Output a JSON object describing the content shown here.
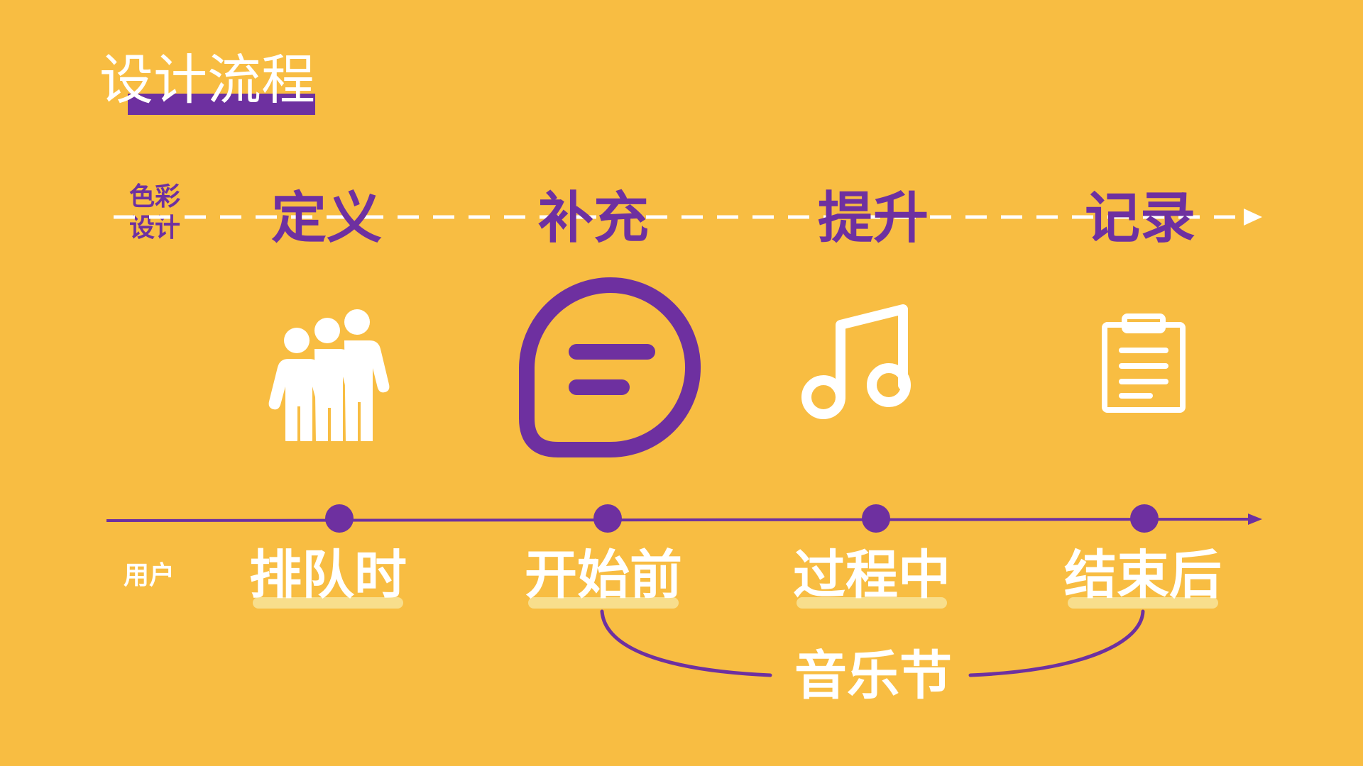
{
  "title": "设计流程",
  "labels": {
    "color_design": "色彩\n设计",
    "user": "用户"
  },
  "stages": [
    "定义",
    "补充",
    "提升",
    "记录"
  ],
  "phases": [
    "排队时",
    "开始前",
    "过程中",
    "结束后"
  ],
  "bracket_label": "音乐节",
  "icons": [
    "people-group-icon",
    "chat-bubble-icon",
    "music-note-icon",
    "clipboard-icon"
  ],
  "colors": {
    "background": "#F8BD42",
    "accent": "#6E30A0",
    "text_light": "#FFFFFF",
    "highlight": "#F8DE8C"
  }
}
